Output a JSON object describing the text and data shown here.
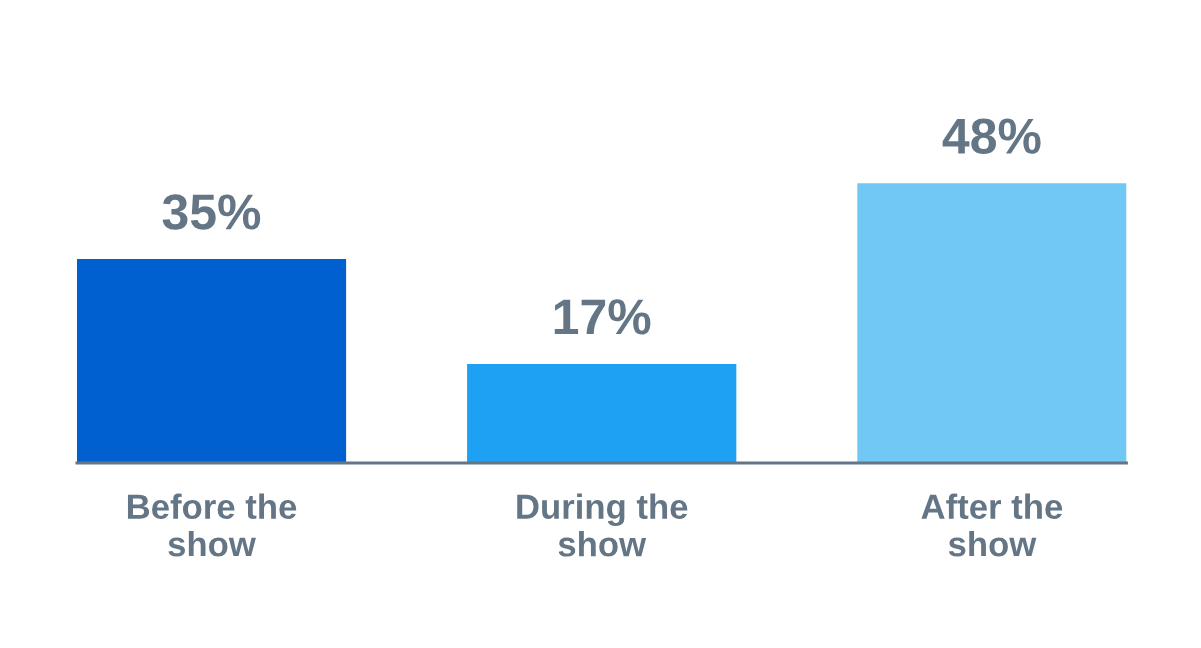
{
  "chart_data": {
    "type": "bar",
    "categories": [
      "Before the\nshow",
      "During the\nshow",
      "After the\nshow"
    ],
    "values": [
      35,
      17,
      48
    ],
    "colors": [
      "#0060d0",
      "#1ea1f2",
      "#72c8f5"
    ],
    "value_labels": [
      "35%",
      "17%",
      "48%"
    ],
    "grid": false,
    "legend": false
  }
}
